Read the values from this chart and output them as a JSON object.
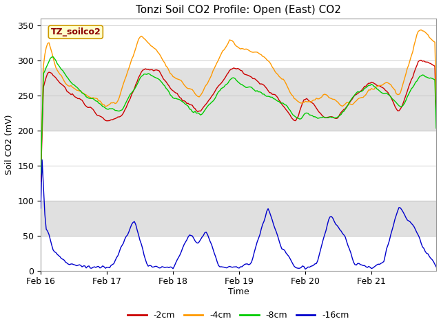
{
  "title": "Tonzi Soil CO2 Profile: Open (East) CO2",
  "ylabel": "Soil CO2 (mV)",
  "xlabel": "Time",
  "watermark": "TZ_soilco2",
  "ylim": [
    0,
    360
  ],
  "yticks": [
    0,
    50,
    100,
    150,
    200,
    250,
    300,
    350
  ],
  "x_labels": [
    "Feb 16",
    "Feb 17",
    "Feb 18",
    "Feb 19",
    "Feb 20",
    "Feb 21"
  ],
  "x_ticks": [
    0,
    48,
    96,
    144,
    192,
    240
  ],
  "total_points": 288,
  "legend": [
    "-2cm",
    "-4cm",
    "-8cm",
    "-16cm"
  ],
  "colors": [
    "#cc0000",
    "#ff9900",
    "#00cc00",
    "#0000cc"
  ],
  "background_color": "#ffffff",
  "band_color": "#e0e0e0",
  "band_ranges": [
    [
      200,
      290
    ],
    [
      50,
      100
    ]
  ],
  "title_fontsize": 11,
  "label_fontsize": 9,
  "tick_fontsize": 9,
  "legend_fontsize": 9,
  "linewidth": 1.0
}
